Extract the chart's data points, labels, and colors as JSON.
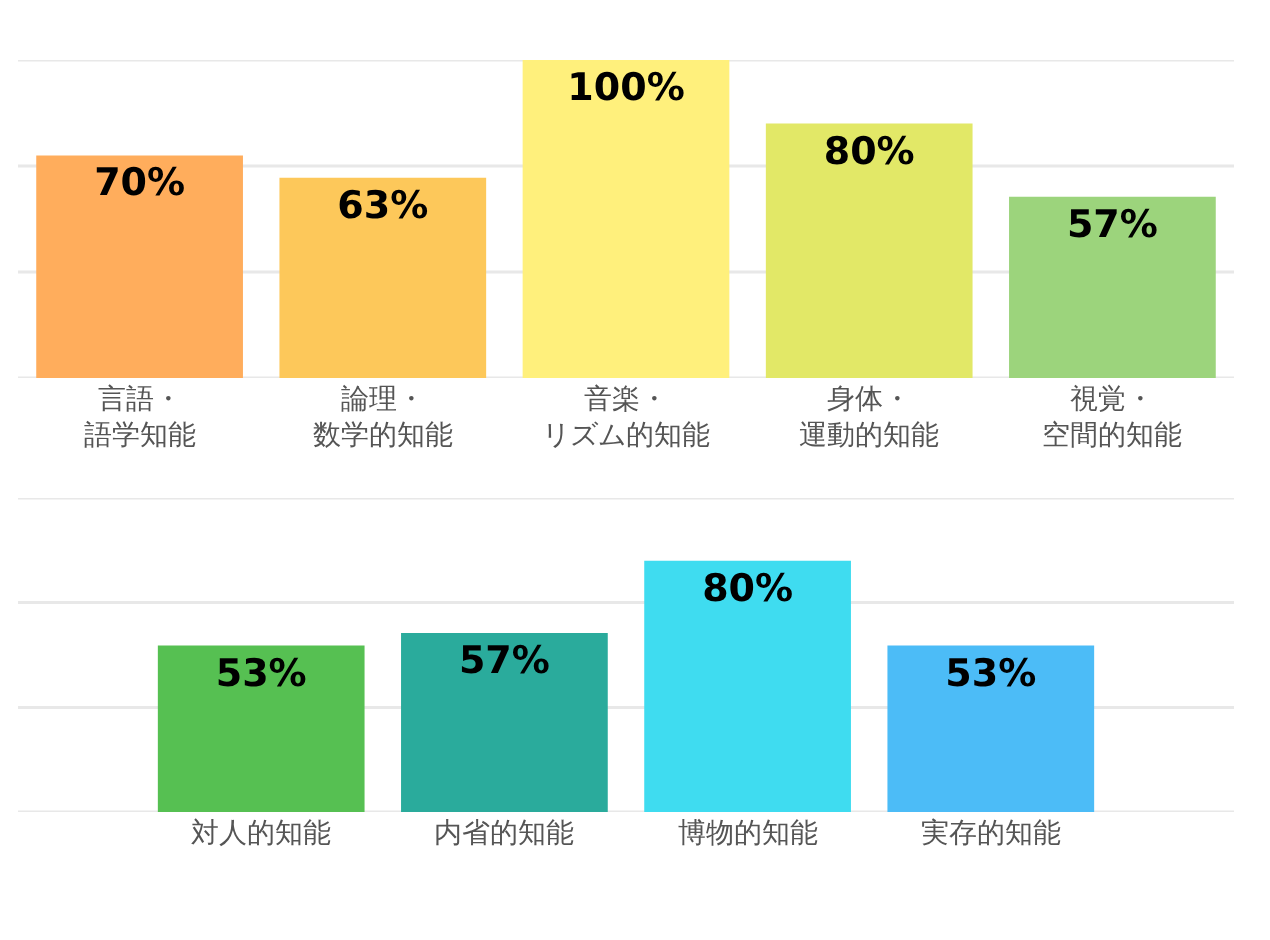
{
  "chart_data": [
    {
      "type": "bar",
      "categories": [
        "言語・語学知能",
        "論理・数学的知能",
        "音楽・リズム的知能",
        "身体・運動的知能",
        "視覚・空間的知能"
      ],
      "values": [
        70,
        63,
        100,
        80,
        57
      ],
      "value_labels": [
        "70%",
        "63%",
        "100%",
        "80%",
        "57%"
      ],
      "colors": [
        "#ffad5c",
        "#fdc85a",
        "#fff07c",
        "#e2e867",
        "#9cd47c"
      ],
      "ylim": [
        0,
        100
      ],
      "yticks": [
        {
          "value": 0,
          "label": null
        },
        {
          "value": 33.3,
          "label": null
        },
        {
          "value": 66.7,
          "label": null
        },
        {
          "value": 100,
          "label": null
        }
      ],
      "grid": "y",
      "tick_labels": "x"
    },
    {
      "type": "bar",
      "categories": [
        "対人的知能",
        "内省的知能",
        "博物的知能",
        "実存的知能"
      ],
      "values": [
        53,
        57,
        80,
        53
      ],
      "value_labels": [
        "53%",
        "57%",
        "80%",
        "53%"
      ],
      "colors": [
        "#56c052",
        "#2aab9c",
        "#3fdcf0",
        "#4cbcf7"
      ],
      "ylim": [
        0,
        100
      ],
      "yticks": [
        {
          "value": 0,
          "label": null
        },
        {
          "value": 33.3,
          "label": null
        },
        {
          "value": 66.7,
          "label": null
        },
        {
          "value": 100,
          "label": null
        }
      ],
      "grid": "y",
      "tick_labels": "x"
    }
  ]
}
